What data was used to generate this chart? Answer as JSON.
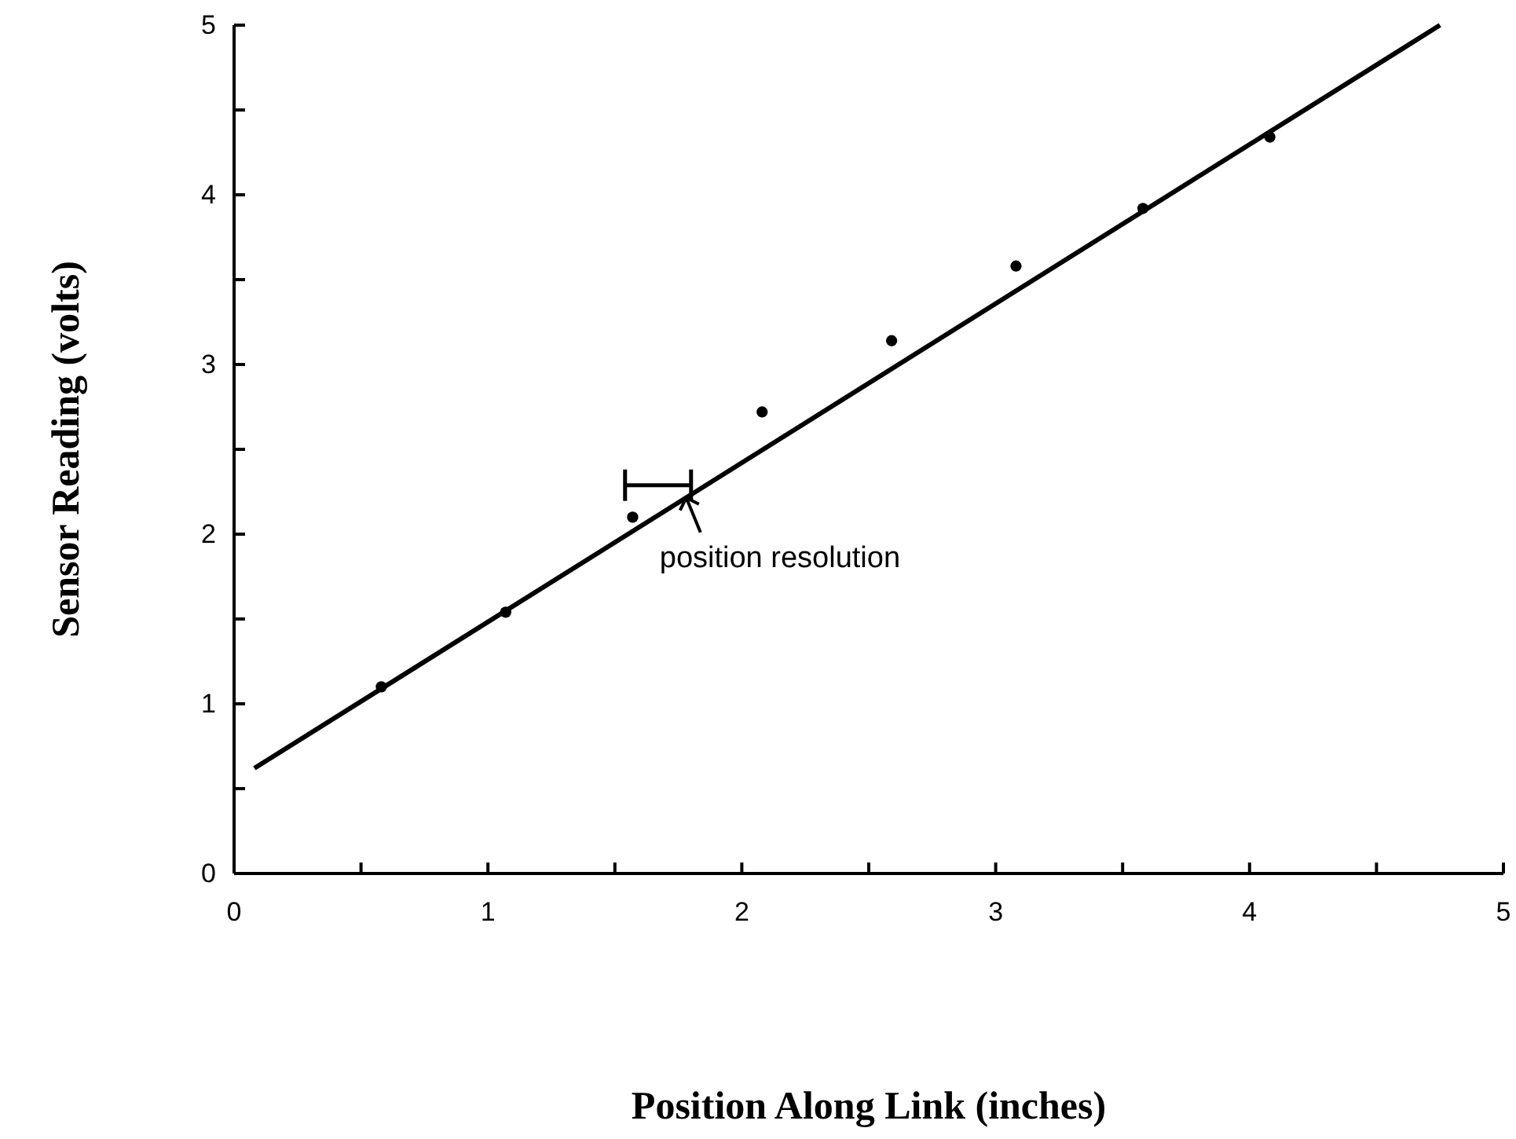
{
  "chart_data": {
    "type": "scatter",
    "xlabel": "Position Along Link (inches)",
    "ylabel": "Sensor Reading (volts)",
    "xlim": [
      0,
      5
    ],
    "ylim": [
      0,
      5
    ],
    "xticks": [
      0,
      {
        "value": 0.5,
        "label": null
      },
      1,
      {
        "value": 1.5,
        "label": null
      },
      2,
      {
        "value": 2.5,
        "label": null
      },
      3,
      {
        "value": 3.5,
        "label": null
      },
      4,
      {
        "value": 4.5,
        "label": null
      },
      5
    ],
    "yticks": [
      0,
      {
        "value": 0.5,
        "label": null
      },
      1,
      {
        "value": 1.5,
        "label": null
      },
      2,
      {
        "value": 2.5,
        "label": null
      },
      3,
      {
        "value": 3.5,
        "label": null
      },
      4,
      {
        "value": 4.5,
        "label": null
      },
      5
    ],
    "grid": false,
    "series": [
      {
        "marker": "circle",
        "color": "#000000",
        "x": [
          0.58,
          1.07,
          1.57,
          2.08,
          2.59,
          3.08,
          3.58,
          4.08
        ],
        "values": [
          1.1,
          1.54,
          2.1,
          2.72,
          3.14,
          3.58,
          3.92,
          4.34
        ]
      },
      {
        "type": "line",
        "marker": "none",
        "color": "#000000",
        "line_style": "solid",
        "x": [
          0.08,
          4.75
        ],
        "values": [
          0.62,
          5.0
        ]
      }
    ],
    "annotations": [
      {
        "text": "position resolution",
        "x": 1.8,
        "y": 2.27
      }
    ]
  }
}
